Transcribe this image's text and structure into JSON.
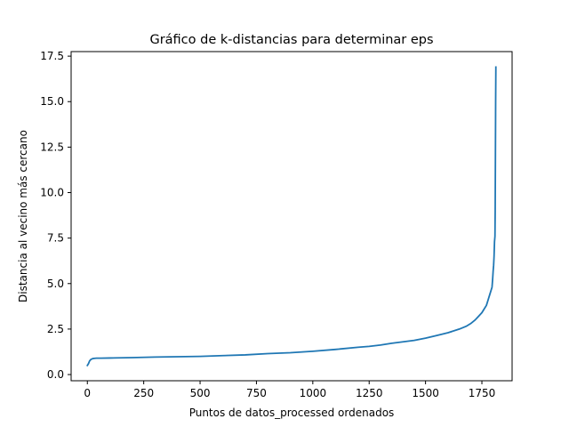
{
  "chart_data": {
    "type": "line",
    "title": "Gráfico de k-distancias para determinar eps",
    "xlabel": "Puntos de datos_processed ordenados",
    "ylabel": "Distancia al vecino más cercano",
    "xlim": [
      -72,
      1884
    ],
    "ylim": [
      -0.34,
      17.75
    ],
    "xticks": [
      0,
      250,
      500,
      750,
      1000,
      1250,
      1500,
      1750
    ],
    "yticks": [
      0.0,
      2.5,
      5.0,
      7.5,
      10.0,
      12.5,
      15.0,
      17.5
    ],
    "xtick_labels": [
      "0",
      "250",
      "500",
      "750",
      "1000",
      "1250",
      "1500",
      "1750"
    ],
    "ytick_labels": [
      "0.0",
      "2.5",
      "5.0",
      "7.5",
      "10.0",
      "12.5",
      "15.0",
      "17.5"
    ],
    "grid": false,
    "legend": null,
    "series": [
      {
        "color": "#1f77b4",
        "x": [
          0,
          5,
          10,
          15,
          20,
          25,
          30,
          40,
          60,
          100,
          200,
          300,
          400,
          500,
          600,
          700,
          800,
          900,
          1000,
          1100,
          1200,
          1250,
          1300,
          1350,
          1400,
          1450,
          1500,
          1550,
          1600,
          1650,
          1680,
          1700,
          1720,
          1735,
          1750,
          1760,
          1770,
          1775,
          1780,
          1785,
          1790,
          1795,
          1798,
          1800,
          1802,
          1804,
          1806,
          1808,
          1809,
          1810,
          1811,
          1812
        ],
        "y": [
          0.5,
          0.6,
          0.75,
          0.82,
          0.86,
          0.88,
          0.89,
          0.9,
          0.9,
          0.91,
          0.93,
          0.96,
          0.98,
          1.0,
          1.04,
          1.08,
          1.15,
          1.2,
          1.28,
          1.38,
          1.5,
          1.55,
          1.62,
          1.72,
          1.8,
          1.88,
          2.0,
          2.15,
          2.3,
          2.5,
          2.65,
          2.8,
          3.0,
          3.2,
          3.4,
          3.6,
          3.8,
          4.0,
          4.2,
          4.4,
          4.6,
          4.8,
          5.3,
          5.7,
          6.0,
          6.5,
          7.3,
          7.6,
          9.0,
          12.0,
          15.0,
          16.9
        ]
      }
    ]
  }
}
